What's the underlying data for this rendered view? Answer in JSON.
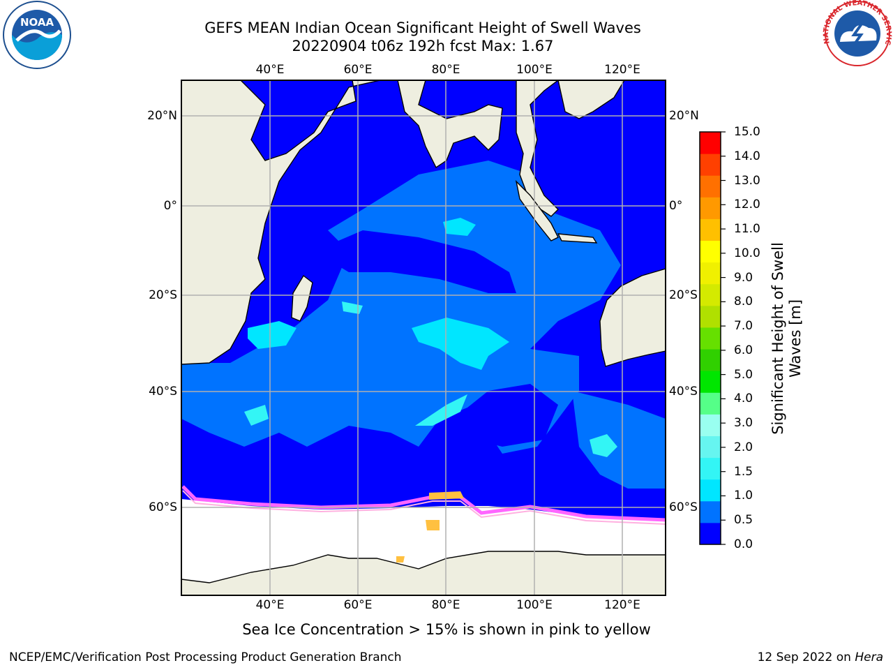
{
  "title": {
    "line1": "GEFS MEAN Indian Ocean Significant Height of Swell Waves",
    "line2": "20220904 t06z 192h fcst   Max: 1.67"
  },
  "map": {
    "lon_range": [
      20,
      130
    ],
    "lat_range": [
      -72,
      28
    ],
    "lon_ticks": [
      "40°E",
      "60°E",
      "80°E",
      "100°E",
      "120°E"
    ],
    "lat_ticks": [
      "20°N",
      "0°",
      "20°S",
      "40°S",
      "60°S"
    ],
    "ice_edge_note": "Sea Ice Concentration > 15% is shown in pink to yellow"
  },
  "colorbar": {
    "title_line1": "Significant Height of Swell",
    "title_line2": "Waves [m]",
    "labels": [
      "15.0",
      "14.0",
      "13.0",
      "12.0",
      "11.0",
      "10.0",
      "9.0",
      "8.0",
      "7.0",
      "6.0",
      "5.0",
      "4.0",
      "3.0",
      "2.0",
      "1.5",
      "1.0",
      "0.5",
      "0.0"
    ],
    "colors": [
      "#0000ff",
      "#0073ff",
      "#00e6ff",
      "#33f5f5",
      "#66f5f0",
      "#99fff0",
      "#55ff88",
      "#00e600",
      "#30d000",
      "#66e000",
      "#b0e000",
      "#d4ea00",
      "#f0f000",
      "#ffff00",
      "#ffc000",
      "#ff9900",
      "#ff7000",
      "#ff4000",
      "#ff0000"
    ]
  },
  "footer": {
    "left": "NCEP/EMC/Verification Post Processing Product Generation Branch",
    "right_date": "12 Sep 2022 on ",
    "right_host": "Hera"
  },
  "logos": {
    "noaa": "NOAA",
    "nws": "NATIONAL WEATHER SERVICE"
  }
}
